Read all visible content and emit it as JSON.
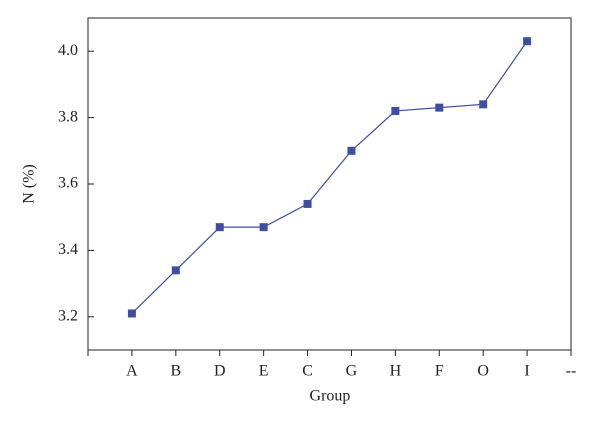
{
  "chart_data": {
    "type": "line",
    "x_label": "Group",
    "y_label": "N (%)",
    "categories": [
      null,
      "A",
      "B",
      "D",
      "E",
      "C",
      "G",
      "H",
      "F",
      "O",
      "I",
      "--"
    ],
    "series": [
      {
        "color": "#3d4ea3",
        "values": [
          null,
          3.21,
          3.34,
          3.47,
          3.47,
          3.54,
          3.7,
          3.82,
          3.83,
          3.84,
          4.03,
          null
        ]
      }
    ],
    "ylim": [
      3.1,
      4.1
    ],
    "yticks": [
      3.2,
      3.4,
      3.6,
      3.8,
      {
        "value": 4,
        "label": "4.0"
      }
    ]
  }
}
